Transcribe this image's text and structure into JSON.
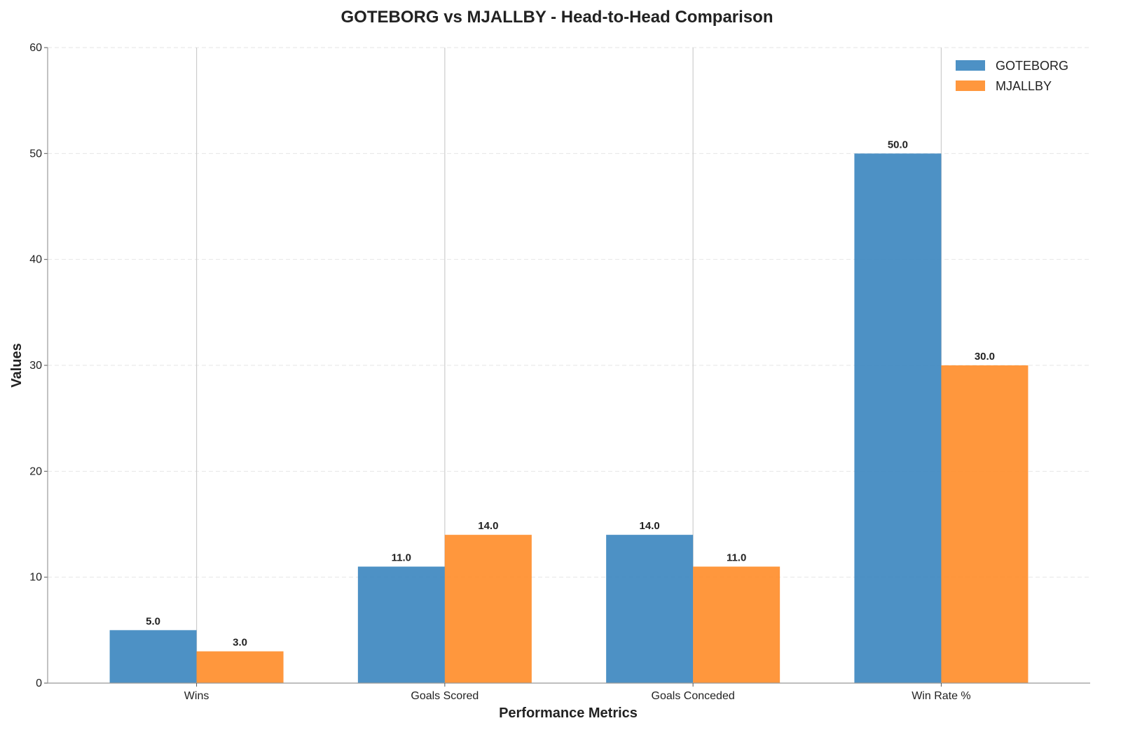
{
  "chart_data": {
    "type": "bar",
    "title": "GOTEBORG vs MJALLBY - Head-to-Head Comparison",
    "xlabel": "Performance Metrics",
    "ylabel": "Values",
    "categories": [
      "Wins",
      "Goals Scored",
      "Goals Conceded",
      "Win Rate %"
    ],
    "series": [
      {
        "name": "GOTEBORG",
        "values": [
          5.0,
          11.0,
          14.0,
          50.0
        ],
        "color": "#3a85bf"
      },
      {
        "name": "MJALLBY",
        "values": [
          3.0,
          14.0,
          11.0,
          30.0
        ],
        "color": "#ff8c28"
      }
    ],
    "value_labels": [
      [
        "5.0",
        "11.0",
        "14.0",
        "50.0"
      ],
      [
        "3.0",
        "14.0",
        "11.0",
        "30.0"
      ]
    ],
    "ylim": [
      0,
      60
    ],
    "yticks": [
      "0",
      "10",
      "20",
      "30",
      "40",
      "50",
      "60"
    ],
    "grid": "y-dashed",
    "legend_position": "top-right"
  }
}
